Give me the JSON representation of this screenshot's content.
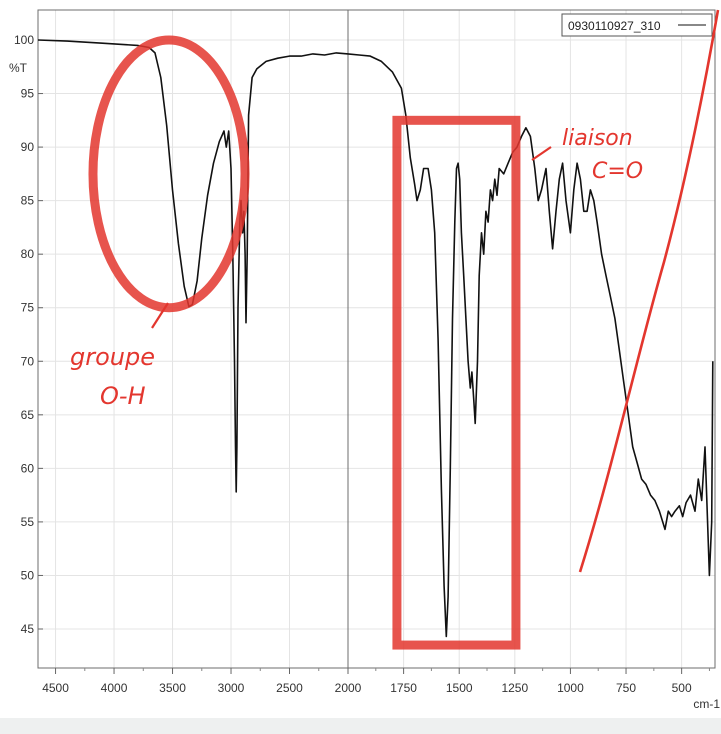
{
  "chart_data": {
    "type": "line",
    "title": "",
    "xlabel": "cm-1",
    "ylabel": "%T",
    "xlim": [
      4650,
      350
    ],
    "ylim": [
      42,
      102
    ],
    "x_axis_reversed": true,
    "x_ticks": [
      "4500",
      "4000",
      "3500",
      "3000",
      "2500",
      "2000",
      "1750",
      "1500",
      "1250",
      "1000",
      "750",
      "500"
    ],
    "x_tick_values": [
      4500,
      4000,
      3500,
      3000,
      2500,
      2000,
      1750,
      1500,
      1250,
      1000,
      750,
      500
    ],
    "y_ticks": [
      "45",
      "50",
      "55",
      "60",
      "65",
      "70",
      "75",
      "80",
      "85",
      "90",
      "95",
      "100"
    ],
    "y_tick_values": [
      45,
      50,
      55,
      60,
      65,
      70,
      75,
      80,
      85,
      90,
      95,
      100
    ],
    "grid": true,
    "legend": {
      "label": "0930110927_310",
      "placement": "top-right"
    },
    "series": [
      {
        "name": "0930110927_310",
        "color": "#111111",
        "points": [
          [
            4650,
            100.0
          ],
          [
            4400,
            99.9
          ],
          [
            4100,
            99.7
          ],
          [
            3800,
            99.5
          ],
          [
            3700,
            99.3
          ],
          [
            3650,
            98.8
          ],
          [
            3600,
            96.5
          ],
          [
            3550,
            92.0
          ],
          [
            3500,
            86.0
          ],
          [
            3450,
            81.0
          ],
          [
            3400,
            77.0
          ],
          [
            3360,
            75.1
          ],
          [
            3330,
            75.3
          ],
          [
            3290,
            77.5
          ],
          [
            3250,
            81.5
          ],
          [
            3200,
            85.5
          ],
          [
            3150,
            88.5
          ],
          [
            3100,
            90.5
          ],
          [
            3060,
            91.5
          ],
          [
            3040,
            90.0
          ],
          [
            3020,
            91.5
          ],
          [
            3000,
            88.0
          ],
          [
            2985,
            80.0
          ],
          [
            2970,
            70.0
          ],
          [
            2962,
            62.0
          ],
          [
            2956,
            57.8
          ],
          [
            2950,
            62.0
          ],
          [
            2940,
            75.0
          ],
          [
            2925,
            83.0
          ],
          [
            2915,
            85.0
          ],
          [
            2900,
            82.0
          ],
          [
            2890,
            84.0
          ],
          [
            2880,
            80.0
          ],
          [
            2872,
            73.6
          ],
          [
            2862,
            80.0
          ],
          [
            2850,
            93.0
          ],
          [
            2820,
            96.5
          ],
          [
            2780,
            97.3
          ],
          [
            2700,
            98.0
          ],
          [
            2600,
            98.3
          ],
          [
            2500,
            98.5
          ],
          [
            2400,
            98.5
          ],
          [
            2300,
            98.7
          ],
          [
            2200,
            98.6
          ],
          [
            2100,
            98.8
          ],
          [
            2000,
            98.7
          ],
          [
            1950,
            98.6
          ],
          [
            1900,
            98.5
          ],
          [
            1850,
            98.0
          ],
          [
            1800,
            97.0
          ],
          [
            1760,
            95.5
          ],
          [
            1740,
            93.0
          ],
          [
            1720,
            89.0
          ],
          [
            1700,
            86.5
          ],
          [
            1690,
            85.0
          ],
          [
            1675,
            86.0
          ],
          [
            1660,
            88.0
          ],
          [
            1640,
            88.0
          ],
          [
            1625,
            86.0
          ],
          [
            1610,
            82.0
          ],
          [
            1595,
            72.0
          ],
          [
            1580,
            58.0
          ],
          [
            1568,
            49.0
          ],
          [
            1558,
            44.3
          ],
          [
            1550,
            48.0
          ],
          [
            1540,
            60.0
          ],
          [
            1530,
            74.0
          ],
          [
            1520,
            83.0
          ],
          [
            1512,
            88.0
          ],
          [
            1505,
            88.5
          ],
          [
            1498,
            87.0
          ],
          [
            1490,
            82.0
          ],
          [
            1480,
            78.0
          ],
          [
            1470,
            74.0
          ],
          [
            1460,
            70.0
          ],
          [
            1450,
            67.5
          ],
          [
            1443,
            69.0
          ],
          [
            1435,
            66.5
          ],
          [
            1428,
            64.2
          ],
          [
            1418,
            70.0
          ],
          [
            1410,
            78.0
          ],
          [
            1400,
            82.0
          ],
          [
            1390,
            80.0
          ],
          [
            1380,
            84.0
          ],
          [
            1370,
            83.0
          ],
          [
            1360,
            86.0
          ],
          [
            1350,
            85.0
          ],
          [
            1340,
            87.0
          ],
          [
            1330,
            85.5
          ],
          [
            1320,
            88.0
          ],
          [
            1300,
            87.5
          ],
          [
            1280,
            88.5
          ],
          [
            1260,
            89.5
          ],
          [
            1240,
            90.0
          ],
          [
            1220,
            91.0
          ],
          [
            1200,
            91.8
          ],
          [
            1180,
            91.0
          ],
          [
            1160,
            88.0
          ],
          [
            1145,
            85.0
          ],
          [
            1130,
            86.0
          ],
          [
            1110,
            88.0
          ],
          [
            1095,
            84.0
          ],
          [
            1080,
            80.5
          ],
          [
            1065,
            84.0
          ],
          [
            1050,
            87.0
          ],
          [
            1035,
            88.5
          ],
          [
            1020,
            85.0
          ],
          [
            1000,
            82.0
          ],
          [
            985,
            86.0
          ],
          [
            970,
            88.5
          ],
          [
            955,
            87.0
          ],
          [
            940,
            84.0
          ],
          [
            925,
            84.0
          ],
          [
            910,
            86.0
          ],
          [
            895,
            85.0
          ],
          [
            880,
            83.0
          ],
          [
            860,
            80.0
          ],
          [
            840,
            78.0
          ],
          [
            820,
            76.0
          ],
          [
            800,
            74.0
          ],
          [
            780,
            71.0
          ],
          [
            760,
            68.0
          ],
          [
            740,
            65.0
          ],
          [
            720,
            62.0
          ],
          [
            700,
            60.5
          ],
          [
            680,
            59.0
          ],
          [
            660,
            58.5
          ],
          [
            640,
            57.5
          ],
          [
            620,
            57.0
          ],
          [
            600,
            56.0
          ],
          [
            585,
            55.0
          ],
          [
            575,
            54.3
          ],
          [
            560,
            56.0
          ],
          [
            545,
            55.5
          ],
          [
            530,
            56.0
          ],
          [
            510,
            56.5
          ],
          [
            495,
            55.5
          ],
          [
            480,
            56.8
          ],
          [
            460,
            57.5
          ],
          [
            440,
            56.0
          ],
          [
            425,
            59.0
          ],
          [
            410,
            57.0
          ],
          [
            395,
            62.0
          ],
          [
            385,
            56.0
          ],
          [
            375,
            50.0
          ],
          [
            365,
            55.0
          ],
          [
            360,
            70.0
          ]
        ]
      }
    ],
    "annotations": [
      {
        "id": "oh",
        "text_line1": "groupe",
        "text_line2": "O-H",
        "marker": "circle",
        "color": "#e3362e",
        "center_x": 3530,
        "center_y": 87.5,
        "radius_x": 650,
        "radius_y": 12.5
      },
      {
        "id": "co",
        "text_line1": "liaison",
        "text_line2": "C=O",
        "marker": "rectangle",
        "color": "#e3362e",
        "x_range": [
          1780,
          1245
        ],
        "y_range": [
          43.5,
          92.5
        ]
      }
    ]
  }
}
